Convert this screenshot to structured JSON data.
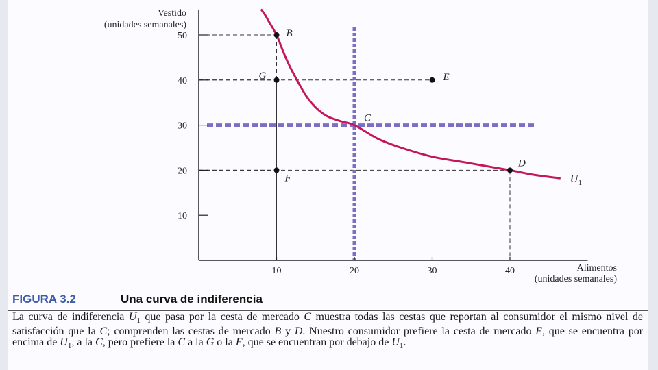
{
  "chart_data": {
    "type": "line",
    "ylabel": [
      "Vestido",
      "(unidades semanales)"
    ],
    "xlabel": [
      "Alimentos",
      "(unidades semanales)"
    ],
    "xlim": [
      0,
      50
    ],
    "ylim": [
      0,
      56
    ],
    "x_ticks": [
      "10",
      "20",
      "30",
      "40"
    ],
    "y_ticks": [
      "50",
      "40",
      "30",
      "20",
      "10"
    ],
    "curve": {
      "name": "U",
      "name_subscript": "1",
      "color": "#c2185b",
      "x": [
        8.0,
        8.5,
        9,
        10,
        11,
        12,
        14,
        16,
        18,
        20,
        23,
        26,
        30,
        34,
        38,
        40,
        43,
        46.5
      ],
      "y": [
        55.7,
        54.5,
        53,
        50,
        45.7,
        42,
        36,
        32.5,
        31,
        30,
        27,
        25,
        23,
        21.8,
        20.6,
        20,
        19,
        18.2
      ]
    },
    "points": [
      {
        "label": "B",
        "x": 10,
        "y": 50
      },
      {
        "label": "G",
        "x": 10,
        "y": 40
      },
      {
        "label": "E",
        "x": 30,
        "y": 40
      },
      {
        "label": "C",
        "x": 20,
        "y": 30
      },
      {
        "label": "D",
        "x": 40,
        "y": 20
      },
      {
        "label": "F",
        "x": 10,
        "y": 20
      }
    ],
    "reference_lines": {
      "x": 20,
      "y": 30,
      "color": "#7b6fc4"
    }
  },
  "figure": {
    "label": "FIGURA 3.2",
    "title": "Una curva de indiferencia"
  },
  "caption": [
    {
      "t": "La curva de indiferencia "
    },
    {
      "t": "U",
      "i": true
    },
    {
      "t": "1",
      "sub": true
    },
    {
      "t": " que pasa por la cesta de mercado "
    },
    {
      "t": "C",
      "i": true
    },
    {
      "t": " muestra todas las cestas que reportan al consumidor el mismo nivel de satisfacción que la "
    },
    {
      "t": "C",
      "i": true
    },
    {
      "t": "; comprenden las cestas de mercado "
    },
    {
      "t": "B",
      "i": true
    },
    {
      "t": " y "
    },
    {
      "t": "D",
      "i": true
    },
    {
      "t": ". Nuestro consumidor prefiere la cesta de mercado "
    },
    {
      "t": "E",
      "i": true
    },
    {
      "t": ", que se encuentra por encima de "
    },
    {
      "t": "U",
      "i": true
    },
    {
      "t": "1",
      "sub": true
    },
    {
      "t": ", a la "
    },
    {
      "t": "C",
      "i": true
    },
    {
      "t": ", pero prefiere la "
    },
    {
      "t": "C",
      "i": true
    },
    {
      "t": " a la "
    },
    {
      "t": "G",
      "i": true
    },
    {
      "t": " o la "
    },
    {
      "t": "F",
      "i": true
    },
    {
      "t": ", que se encuentran por debajo de "
    },
    {
      "t": "U",
      "i": true
    },
    {
      "t": "1",
      "sub": true
    },
    {
      "t": "."
    }
  ]
}
